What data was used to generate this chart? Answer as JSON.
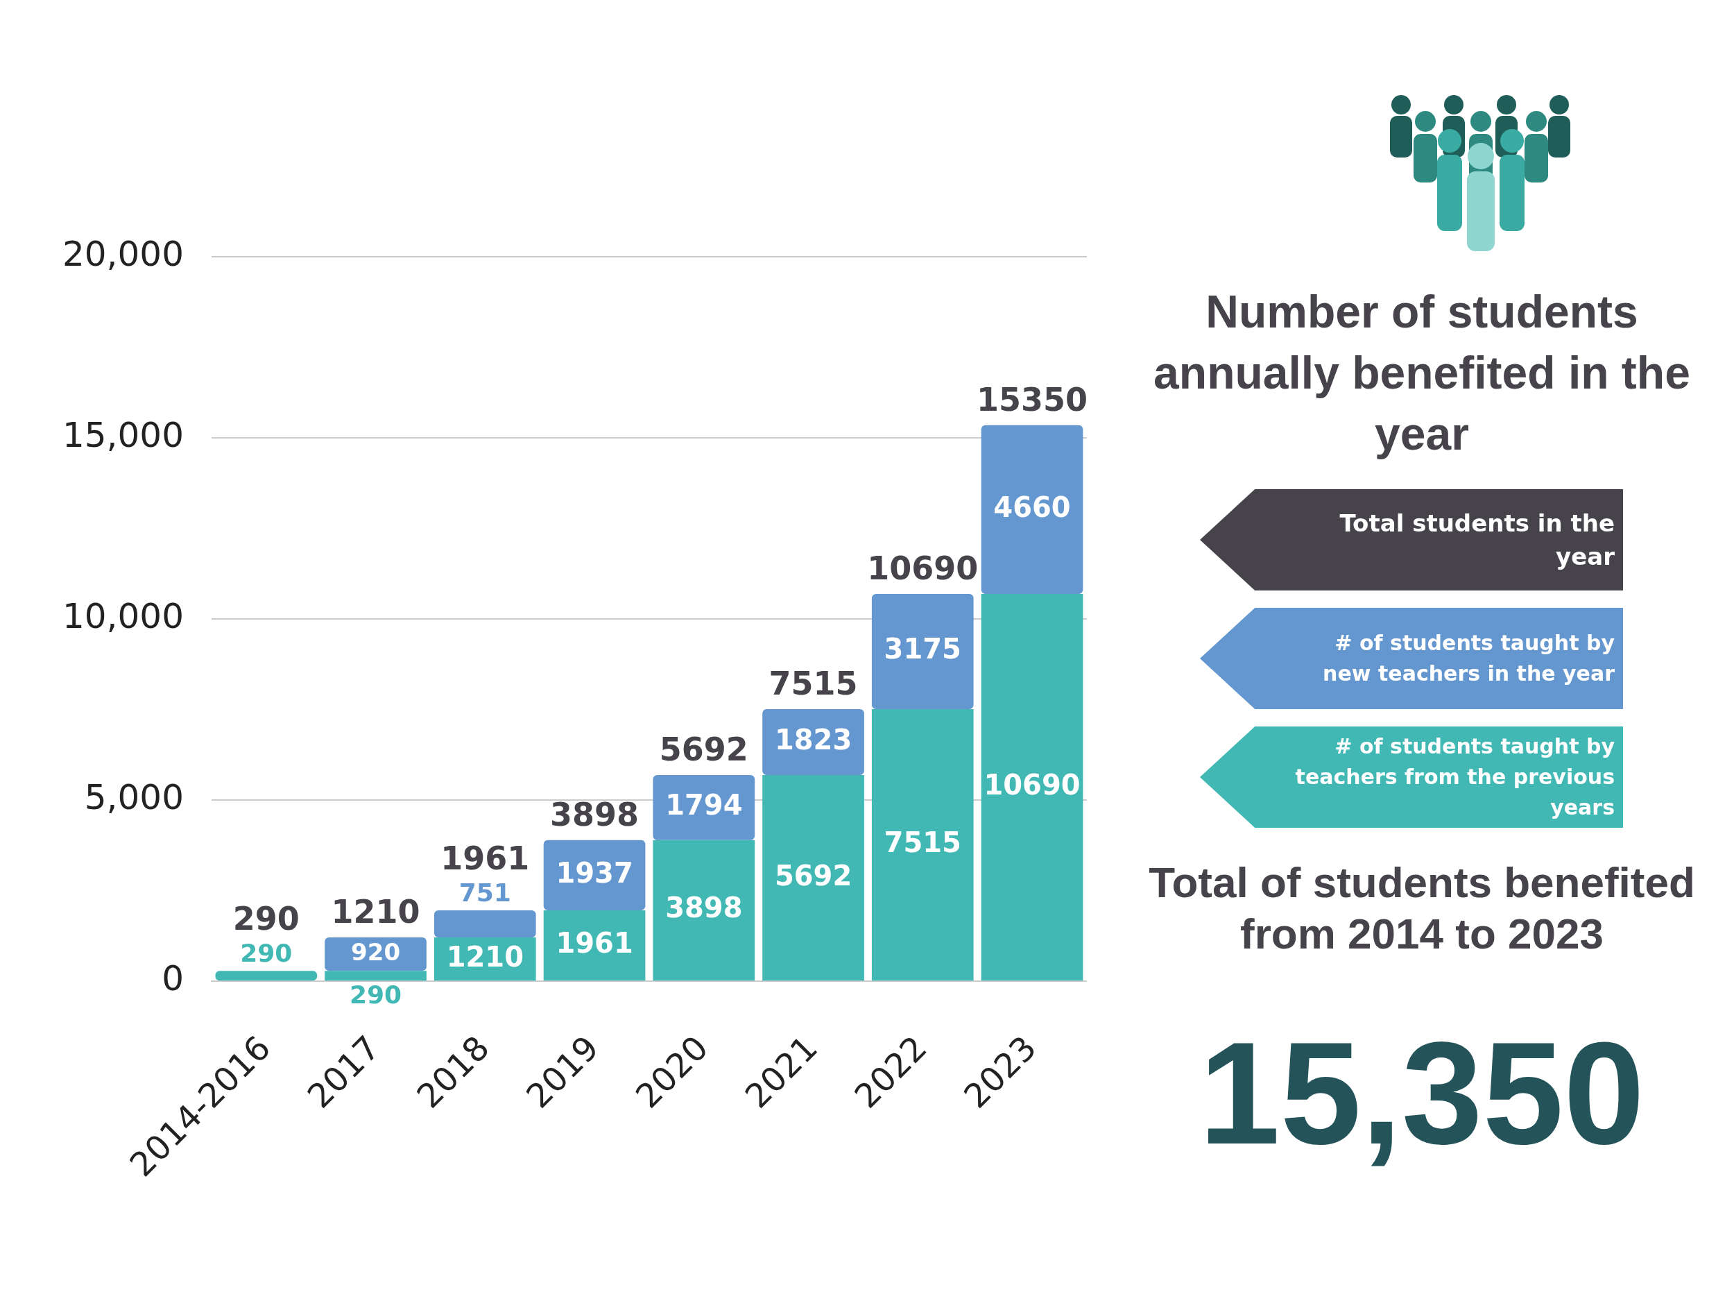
{
  "chart_data": {
    "type": "bar",
    "title": "Number of students annually benefited in the year",
    "categories": [
      "2014-2016",
      "2017",
      "2018",
      "2019",
      "2020",
      "2021",
      "2022",
      "2023"
    ],
    "stacked": true,
    "series": [
      {
        "name": "# of students taught by teachers from the previous years",
        "color": "#41b8b4",
        "values": [
          290,
          290,
          1210,
          1961,
          3898,
          5692,
          7515,
          10690
        ]
      },
      {
        "name": "# of students taught by new teachers in the year",
        "color": "#6497cf",
        "values": [
          null,
          920,
          751,
          1937,
          1794,
          1823,
          3175,
          4660
        ]
      }
    ],
    "totals": [
      "290",
      "1210",
      "1961",
      "3898",
      "5692",
      "7515",
      "10690",
      "15350"
    ],
    "data_labels": true,
    "ylim": [
      0,
      20000
    ],
    "yticks": [
      {
        "value": 0,
        "label": "0"
      },
      {
        "value": 5000,
        "label": "5,000"
      },
      {
        "value": 10000,
        "label": "10,000"
      },
      {
        "value": 15000,
        "label": "15,000"
      },
      {
        "value": 20000,
        "label": "20,000"
      }
    ],
    "grid": "y",
    "legend": "right",
    "annotations": [
      "Total students in the year",
      "Total of students benefited from 2014 to 2023",
      "15,350"
    ]
  }
}
